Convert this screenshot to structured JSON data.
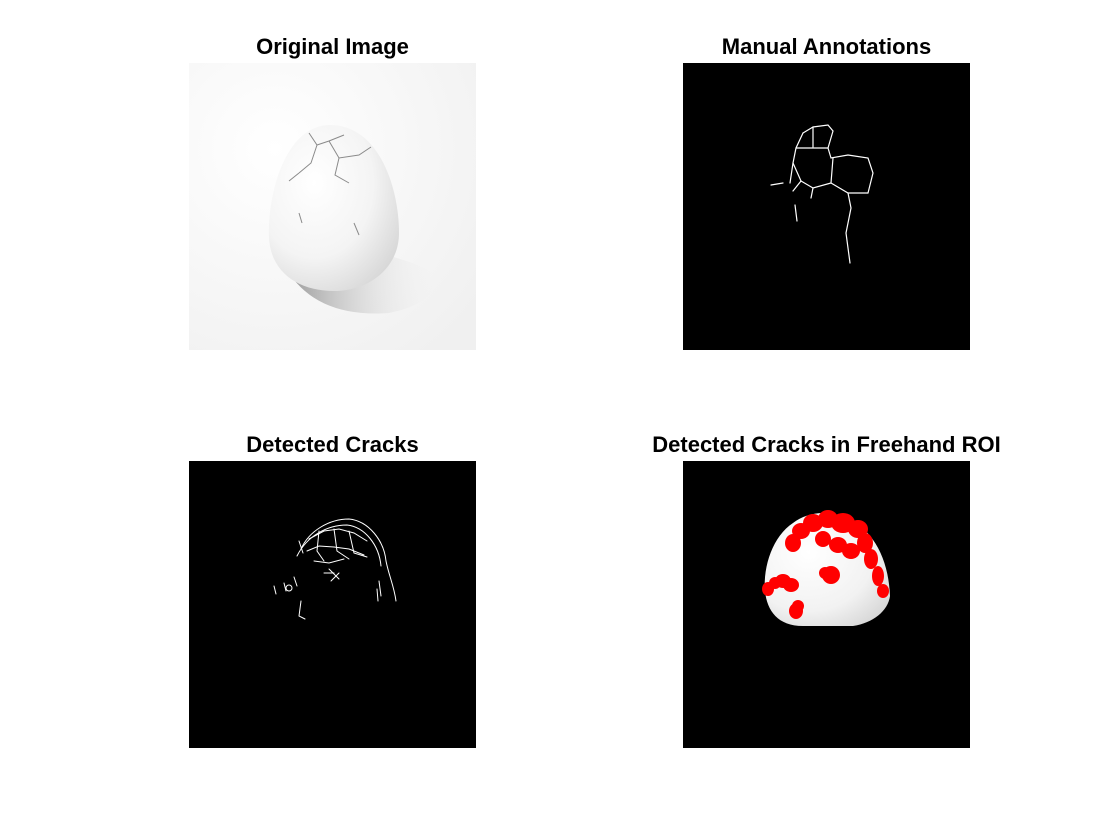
{
  "figure": {
    "panels": [
      {
        "title": "Original Image"
      },
      {
        "title": "Manual Annotations"
      },
      {
        "title": "Detected Cracks"
      },
      {
        "title": "Detected Cracks in Freehand ROI"
      }
    ]
  },
  "colors": {
    "figure_background": "#ffffff",
    "mask_background": "#000000",
    "crack_line": "#ffffff",
    "roi_overlay": "#ff0000"
  }
}
